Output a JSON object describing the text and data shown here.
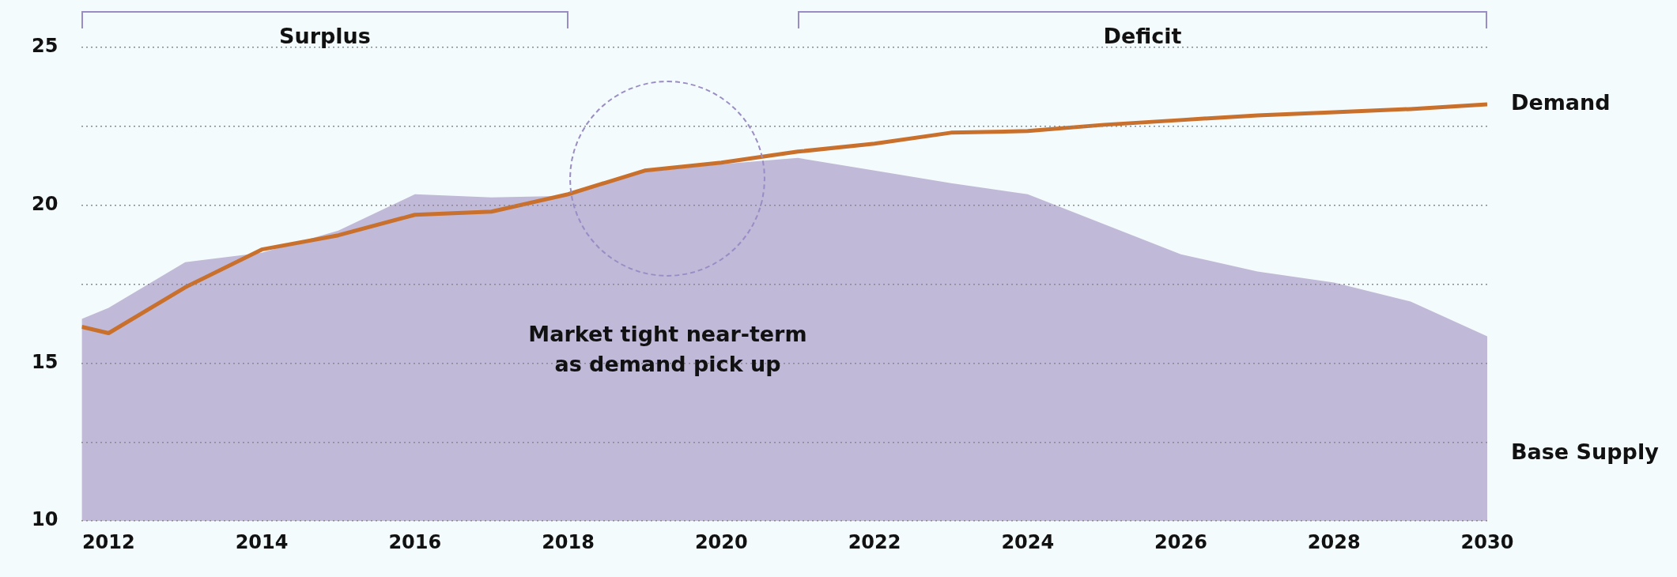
{
  "chart_data": {
    "type": "line",
    "x": [
      2011.65,
      2012,
      2013,
      2014,
      2015,
      2016,
      2017,
      2018,
      2019,
      2020,
      2021,
      2022,
      2023,
      2024,
      2025,
      2026,
      2027,
      2028,
      2029,
      2030
    ],
    "series": [
      {
        "name": "Base Supply",
        "type": "area",
        "color": "#c0b9d7",
        "values": [
          16.4,
          16.75,
          18.2,
          18.5,
          19.2,
          20.35,
          20.25,
          20.3,
          21.05,
          21.3,
          21.5,
          21.1,
          20.7,
          20.35,
          19.4,
          18.45,
          17.9,
          17.55,
          16.95,
          15.85
        ]
      },
      {
        "name": "Demand",
        "type": "line",
        "color": "#c8702c",
        "values": [
          16.15,
          15.95,
          17.4,
          18.6,
          19.05,
          19.7,
          19.8,
          20.35,
          21.1,
          21.35,
          21.7,
          21.95,
          22.3,
          22.35,
          22.55,
          22.7,
          22.85,
          22.95,
          23.05,
          23.2
        ]
      }
    ],
    "xlim": [
      2011.65,
      2030
    ],
    "xticks": [
      2012,
      2014,
      2016,
      2018,
      2020,
      2022,
      2024,
      2026,
      2028,
      2030
    ],
    "ylim": [
      10,
      25
    ],
    "yticks": [
      10,
      {
        "value": 12.5,
        "label": null
      },
      15,
      {
        "value": 17.5,
        "label": null
      },
      20,
      {
        "value": 22.5,
        "label": null
      },
      25
    ],
    "grid": "y",
    "legend": false,
    "marker": "none",
    "annotations": [
      "Surplus",
      "Deficit",
      "Market tight near-term\nas demand pick up"
    ]
  }
}
